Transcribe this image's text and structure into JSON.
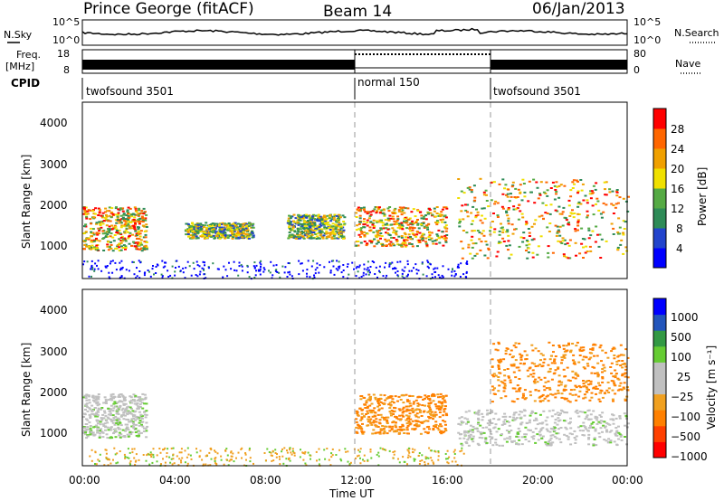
{
  "header": {
    "station": "Prince George (fitACF)",
    "beam": "Beam 14",
    "date": "06/Jan/2013"
  },
  "noise_panel": {
    "left_label": "N.Sky",
    "right_label": "N.Search",
    "tick_top": "10^5",
    "tick_bottom": "10^0",
    "tick_top_right": "10^5",
    "tick_bottom_right": "10^0"
  },
  "freq_panel": {
    "left_label_1": "Freq.",
    "left_label_2": "[MHz]",
    "right_label": "Nave",
    "left_ticks": [
      "18",
      "8"
    ],
    "right_ticks": [
      "80",
      "0"
    ]
  },
  "cpid_panel": {
    "label": "CPID",
    "segments": [
      {
        "name": "twofsound 3501",
        "start_h": 0,
        "end_h": 12
      },
      {
        "name": "normal 150",
        "start_h": 12,
        "end_h": 18
      },
      {
        "name": "twofsound 3501",
        "start_h": 18,
        "end_h": 24
      }
    ]
  },
  "power_panel": {
    "ylabel": "Slant Range [km]",
    "yticks": [
      "4000",
      "3000",
      "2000",
      "1000"
    ],
    "colorbar_label": "Power [dB]",
    "colorbar_ticks": [
      "28",
      "24",
      "20",
      "16",
      "12",
      "8",
      "4"
    ],
    "colors": [
      "#0000ff",
      "#2244cc",
      "#2e8b57",
      "#55aa44",
      "#f0e000",
      "#f0a000",
      "#ff6600",
      "#ff0000"
    ]
  },
  "velocity_panel": {
    "ylabel": "Slant Range [km]",
    "yticks": [
      "4000",
      "3000",
      "2000",
      "1000"
    ],
    "colorbar_label": "Velocity [m s⁻¹]",
    "colorbar_ticks": [
      "1000",
      "500",
      "100",
      "25",
      "−25",
      "−100",
      "−500",
      "−1000"
    ],
    "colors": [
      "#ff0000",
      "#ff4000",
      "#ff8000",
      "#f0a020",
      "#c0c0c0",
      "#c0c0c0",
      "#66cc33",
      "#339944",
      "#2255bb",
      "#0000ff"
    ]
  },
  "xaxis": {
    "label": "Time UT",
    "ticks": [
      "00:00",
      "04:00",
      "08:00",
      "12:00",
      "16:00",
      "20:00",
      "00:00"
    ]
  },
  "chart_data": {
    "type": "heatmap",
    "x_range_hours": [
      0,
      24
    ],
    "y_range_km": [
      180,
      4600
    ],
    "mode_change_hours": [
      12,
      18
    ],
    "power_features": [
      {
        "t0": 0.0,
        "t1": 2.8,
        "r0": 900,
        "r1": 2000,
        "level": "high"
      },
      {
        "t0": 4.5,
        "t1": 7.5,
        "r0": 1200,
        "r1": 1600,
        "level": "medium"
      },
      {
        "t0": 9.0,
        "t1": 11.5,
        "r0": 1200,
        "r1": 1800,
        "level": "medium"
      },
      {
        "t0": 12.0,
        "t1": 16.0,
        "r0": 1000,
        "r1": 2000,
        "level": "high"
      },
      {
        "t0": 16.5,
        "t1": 24.0,
        "r0": 700,
        "r1": 2700,
        "level": "high"
      }
    ],
    "velocity_features": [
      {
        "t0": 0.0,
        "t1": 2.8,
        "r0": 900,
        "r1": 2000,
        "sign": "near-zero"
      },
      {
        "t0": 12.0,
        "t1": 16.0,
        "r0": 1000,
        "r1": 2000,
        "sign": "negative"
      },
      {
        "t0": 16.5,
        "t1": 24.0,
        "r0": 700,
        "r1": 1600,
        "sign": "near-zero"
      },
      {
        "t0": 18.0,
        "t1": 24.0,
        "r0": 1800,
        "r1": 3300,
        "sign": "negative"
      }
    ]
  }
}
